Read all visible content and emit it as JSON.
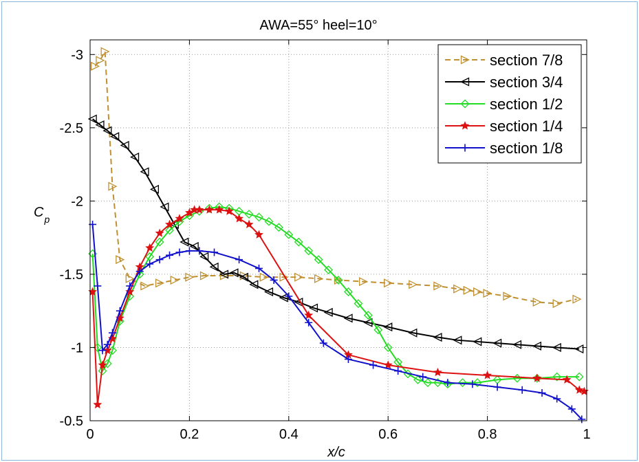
{
  "chart_data": {
    "type": "line",
    "title": "AWA=55° heel=10°",
    "xlabel": "x/c",
    "ylabel_main": "C",
    "ylabel_sub": "p",
    "xlim": [
      0,
      1
    ],
    "ylim": [
      -3.1,
      -0.5
    ],
    "y_reversed": true,
    "grid": true,
    "legend_position": "top-right",
    "x_ticks": [
      0,
      0.2,
      0.4,
      0.6,
      0.8,
      1
    ],
    "x_tick_labels": [
      "0",
      "0.2",
      "0.4",
      "0.6",
      "0.8",
      "1"
    ],
    "y_ticks": [
      -3,
      -2.5,
      -2,
      -1.5,
      -1,
      -0.5
    ],
    "y_tick_labels": [
      "-3",
      "-2.5",
      "-2",
      "-1.5",
      "-1",
      "-0.5"
    ],
    "series": [
      {
        "name": "section 7/8",
        "color": "#c09030",
        "dash": true,
        "marker": "triangle-right",
        "x": [
          0.01,
          0.02,
          0.03,
          0.045,
          0.06,
          0.08,
          0.11,
          0.14,
          0.17,
          0.2,
          0.23,
          0.27,
          0.31,
          0.35,
          0.39,
          0.42,
          0.46,
          0.5,
          0.55,
          0.6,
          0.65,
          0.7,
          0.74,
          0.76,
          0.78,
          0.8,
          0.84,
          0.9,
          0.94,
          0.98
        ],
        "y": [
          -2.92,
          -2.96,
          -3.02,
          -2.1,
          -1.6,
          -1.47,
          -1.42,
          -1.44,
          -1.46,
          -1.48,
          -1.49,
          -1.49,
          -1.49,
          -1.48,
          -1.48,
          -1.48,
          -1.47,
          -1.46,
          -1.45,
          -1.44,
          -1.43,
          -1.42,
          -1.4,
          -1.39,
          -1.38,
          -1.37,
          -1.35,
          -1.31,
          -1.3,
          -1.33
        ]
      },
      {
        "name": "section 3/4",
        "color": "#000000",
        "dash": false,
        "marker": "triangle-left",
        "x": [
          0.005,
          0.02,
          0.035,
          0.05,
          0.07,
          0.09,
          0.11,
          0.13,
          0.15,
          0.17,
          0.19,
          0.21,
          0.23,
          0.25,
          0.27,
          0.29,
          0.31,
          0.33,
          0.36,
          0.39,
          0.42,
          0.45,
          0.48,
          0.52,
          0.56,
          0.6,
          0.65,
          0.7,
          0.74,
          0.78,
          0.82,
          0.86,
          0.9,
          0.94,
          0.985
        ],
        "y": [
          -2.56,
          -2.52,
          -2.48,
          -2.44,
          -2.38,
          -2.3,
          -2.2,
          -2.08,
          -1.96,
          -1.84,
          -1.72,
          -1.69,
          -1.62,
          -1.55,
          -1.5,
          -1.51,
          -1.48,
          -1.43,
          -1.38,
          -1.34,
          -1.31,
          -1.27,
          -1.24,
          -1.2,
          -1.17,
          -1.14,
          -1.1,
          -1.07,
          -1.05,
          -1.04,
          -1.03,
          -1.02,
          -1.01,
          -1.0,
          -0.99
        ]
      },
      {
        "name": "section 1/2",
        "color": "#22dd22",
        "dash": false,
        "marker": "diamond",
        "x": [
          0.005,
          0.015,
          0.025,
          0.035,
          0.045,
          0.06,
          0.08,
          0.1,
          0.12,
          0.14,
          0.16,
          0.18,
          0.2,
          0.22,
          0.24,
          0.26,
          0.28,
          0.3,
          0.32,
          0.34,
          0.36,
          0.38,
          0.4,
          0.42,
          0.44,
          0.46,
          0.48,
          0.5,
          0.52,
          0.54,
          0.56,
          0.58,
          0.6,
          0.62,
          0.64,
          0.66,
          0.68,
          0.7,
          0.72,
          0.75,
          0.78,
          0.82,
          0.86,
          0.9,
          0.94,
          0.985
        ],
        "y": [
          -1.64,
          -1.0,
          -0.84,
          -0.89,
          -0.98,
          -1.18,
          -1.35,
          -1.5,
          -1.62,
          -1.72,
          -1.8,
          -1.86,
          -1.9,
          -1.93,
          -1.95,
          -1.96,
          -1.95,
          -1.93,
          -1.91,
          -1.89,
          -1.86,
          -1.82,
          -1.77,
          -1.72,
          -1.66,
          -1.6,
          -1.53,
          -1.46,
          -1.38,
          -1.3,
          -1.22,
          -1.12,
          -1.0,
          -0.9,
          -0.82,
          -0.78,
          -0.76,
          -0.76,
          -0.75,
          -0.76,
          -0.76,
          -0.78,
          -0.79,
          -0.79,
          -0.8,
          -0.8
        ]
      },
      {
        "name": "section 1/4",
        "color": "#dd1111",
        "dash": false,
        "marker": "star",
        "x": [
          0.005,
          0.015,
          0.025,
          0.035,
          0.045,
          0.06,
          0.08,
          0.1,
          0.12,
          0.14,
          0.16,
          0.18,
          0.2,
          0.21,
          0.22,
          0.24,
          0.26,
          0.28,
          0.3,
          0.32,
          0.34,
          0.44,
          0.52,
          0.6,
          0.7,
          0.8,
          0.9,
          0.96,
          0.985,
          0.995
        ],
        "y": [
          -1.38,
          -0.61,
          -0.88,
          -0.98,
          -1.06,
          -1.2,
          -1.38,
          -1.55,
          -1.68,
          -1.78,
          -1.84,
          -1.88,
          -1.92,
          -1.94,
          -1.94,
          -1.94,
          -1.94,
          -1.93,
          -1.88,
          -1.84,
          -1.77,
          -1.22,
          -0.95,
          -0.88,
          -0.83,
          -0.81,
          -0.79,
          -0.78,
          -0.71,
          -0.7
        ]
      },
      {
        "name": "section 1/8",
        "color": "#1111cc",
        "dash": false,
        "marker": "plus",
        "x": [
          0.005,
          0.015,
          0.025,
          0.035,
          0.045,
          0.06,
          0.08,
          0.1,
          0.12,
          0.14,
          0.16,
          0.18,
          0.2,
          0.22,
          0.25,
          0.3,
          0.34,
          0.37,
          0.4,
          0.44,
          0.47,
          0.52,
          0.57,
          0.62,
          0.67,
          0.72,
          0.77,
          0.82,
          0.87,
          0.91,
          0.94,
          0.97,
          0.99
        ],
        "y": [
          -1.84,
          -1.42,
          -0.98,
          -1.02,
          -1.1,
          -1.25,
          -1.42,
          -1.52,
          -1.57,
          -1.6,
          -1.63,
          -1.65,
          -1.66,
          -1.66,
          -1.65,
          -1.6,
          -1.54,
          -1.46,
          -1.35,
          -1.17,
          -1.03,
          -0.92,
          -0.88,
          -0.84,
          -0.8,
          -0.76,
          -0.75,
          -0.73,
          -0.71,
          -0.69,
          -0.65,
          -0.58,
          -0.51
        ]
      }
    ]
  }
}
